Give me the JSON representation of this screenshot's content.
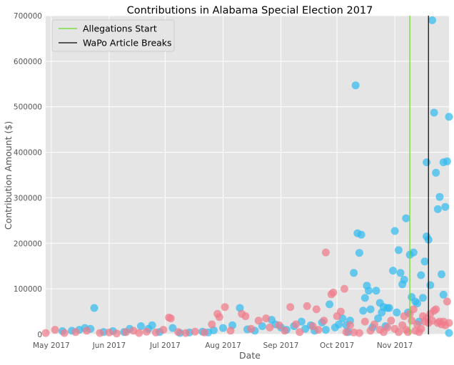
{
  "chart_data": {
    "type": "scatter",
    "title": "Contributions in Alabama Special Election 2017",
    "xlabel": "Date",
    "ylabel": "Contribution Amount ($)",
    "x_type": "date",
    "xlim": [
      "2017-04-28",
      "2017-11-30"
    ],
    "ylim": [
      0,
      700000
    ],
    "yticks": [
      0,
      100000,
      200000,
      300000,
      400000,
      500000,
      600000,
      700000
    ],
    "xticks": [
      {
        "date": "2017-05-01",
        "label": "May 2017"
      },
      {
        "date": "2017-06-01",
        "label": "Jun 2017"
      },
      {
        "date": "2017-07-01",
        "label": "Jul 2017"
      },
      {
        "date": "2017-08-01",
        "label": "Aug 2017"
      },
      {
        "date": "2017-09-01",
        "label": "Sep 2017"
      },
      {
        "date": "2017-10-01",
        "label": "Oct 2017"
      },
      {
        "date": "2017-11-01",
        "label": "Nov 2017"
      }
    ],
    "grid": true,
    "legend_position": "top-left",
    "vlines": [
      {
        "name": "Allegations Start",
        "date": "2017-11-09",
        "color": "#66dd22"
      },
      {
        "name": "WaPo Article Breaks",
        "date": "2017-11-19",
        "color": "#000000"
      }
    ],
    "series": [
      {
        "color": "#33bbee",
        "points": [
          [
            "2017-05-07",
            7000
          ],
          [
            "2017-05-12",
            8000
          ],
          [
            "2017-05-16",
            10000
          ],
          [
            "2017-05-19",
            14000
          ],
          [
            "2017-05-22",
            12000
          ],
          [
            "2017-05-24",
            58000
          ],
          [
            "2017-05-29",
            5000
          ],
          [
            "2017-06-03",
            7000
          ],
          [
            "2017-06-09",
            5000
          ],
          [
            "2017-06-12",
            12000
          ],
          [
            "2017-06-18",
            18000
          ],
          [
            "2017-06-22",
            12000
          ],
          [
            "2017-06-24",
            20000
          ],
          [
            "2017-06-28",
            5000
          ],
          [
            "2017-07-05",
            14000
          ],
          [
            "2017-07-09",
            3000
          ],
          [
            "2017-07-14",
            4000
          ],
          [
            "2017-07-21",
            6000
          ],
          [
            "2017-07-24",
            4000
          ],
          [
            "2017-07-27",
            9000
          ],
          [
            "2017-08-01",
            14000
          ],
          [
            "2017-08-06",
            20000
          ],
          [
            "2017-08-10",
            58000
          ],
          [
            "2017-08-14",
            11000
          ],
          [
            "2017-08-18",
            8000
          ],
          [
            "2017-08-22",
            18000
          ],
          [
            "2017-08-27",
            32000
          ],
          [
            "2017-08-29",
            22000
          ],
          [
            "2017-09-01",
            15000
          ],
          [
            "2017-09-04",
            10000
          ],
          [
            "2017-09-08",
            18000
          ],
          [
            "2017-09-12",
            28000
          ],
          [
            "2017-09-14",
            12000
          ],
          [
            "2017-09-17",
            20000
          ],
          [
            "2017-09-19",
            8000
          ],
          [
            "2017-09-23",
            26000
          ],
          [
            "2017-09-25",
            10000
          ],
          [
            "2017-09-27",
            66000
          ],
          [
            "2017-09-30",
            15000
          ],
          [
            "2017-10-02",
            22000
          ],
          [
            "2017-10-04",
            35000
          ],
          [
            "2017-10-06",
            20000
          ],
          [
            "2017-10-07",
            5000
          ],
          [
            "2017-10-08",
            30000
          ],
          [
            "2017-10-10",
            135000
          ],
          [
            "2017-10-11",
            547000
          ],
          [
            "2017-10-12",
            222000
          ],
          [
            "2017-10-13",
            179000
          ],
          [
            "2017-10-14",
            219000
          ],
          [
            "2017-10-15",
            52000
          ],
          [
            "2017-10-16",
            80000
          ],
          [
            "2017-10-17",
            107000
          ],
          [
            "2017-10-18",
            96000
          ],
          [
            "2017-10-19",
            55000
          ],
          [
            "2017-10-20",
            15000
          ],
          [
            "2017-10-22",
            96000
          ],
          [
            "2017-10-23",
            35000
          ],
          [
            "2017-10-24",
            69000
          ],
          [
            "2017-10-25",
            48000
          ],
          [
            "2017-10-26",
            60000
          ],
          [
            "2017-10-27",
            18000
          ],
          [
            "2017-10-28",
            58000
          ],
          [
            "2017-10-29",
            58000
          ],
          [
            "2017-10-31",
            140000
          ],
          [
            "2017-11-01",
            227000
          ],
          [
            "2017-11-02",
            48000
          ],
          [
            "2017-11-03",
            185000
          ],
          [
            "2017-11-04",
            135000
          ],
          [
            "2017-11-05",
            110000
          ],
          [
            "2017-11-06",
            120000
          ],
          [
            "2017-11-07",
            255000
          ],
          [
            "2017-11-08",
            48000
          ],
          [
            "2017-11-09",
            175000
          ],
          [
            "2017-11-10",
            82000
          ],
          [
            "2017-11-11",
            180000
          ],
          [
            "2017-11-12",
            72000
          ],
          [
            "2017-11-13",
            68000
          ],
          [
            "2017-11-14",
            28000
          ],
          [
            "2017-11-15",
            130000
          ],
          [
            "2017-11-16",
            80000
          ],
          [
            "2017-11-17",
            160000
          ],
          [
            "2017-11-18",
            215000
          ],
          [
            "2017-11-18",
            378000
          ],
          [
            "2017-11-19",
            208000
          ],
          [
            "2017-11-20",
            108000
          ],
          [
            "2017-11-21",
            690000
          ],
          [
            "2017-11-22",
            487000
          ],
          [
            "2017-11-23",
            355000
          ],
          [
            "2017-11-24",
            275000
          ],
          [
            "2017-11-25",
            302000
          ],
          [
            "2017-11-26",
            132000
          ],
          [
            "2017-11-27",
            87000
          ],
          [
            "2017-11-27",
            378000
          ],
          [
            "2017-11-28",
            280000
          ],
          [
            "2017-11-29",
            380000
          ],
          [
            "2017-11-30",
            478000
          ],
          [
            "2017-11-30",
            3000
          ]
        ]
      },
      {
        "color": "#f07c8a",
        "points": [
          [
            "2017-04-28",
            3000
          ],
          [
            "2017-05-03",
            10000
          ],
          [
            "2017-05-08",
            3000
          ],
          [
            "2017-05-14",
            5000
          ],
          [
            "2017-05-20",
            8000
          ],
          [
            "2017-05-27",
            3000
          ],
          [
            "2017-06-01",
            4000
          ],
          [
            "2017-06-05",
            2000
          ],
          [
            "2017-06-10",
            5000
          ],
          [
            "2017-06-14",
            8000
          ],
          [
            "2017-06-17",
            3000
          ],
          [
            "2017-06-21",
            6000
          ],
          [
            "2017-06-26",
            4000
          ],
          [
            "2017-06-30",
            10000
          ],
          [
            "2017-07-03",
            37000
          ],
          [
            "2017-07-04",
            35000
          ],
          [
            "2017-07-08",
            5000
          ],
          [
            "2017-07-12",
            3000
          ],
          [
            "2017-07-17",
            6000
          ],
          [
            "2017-07-22",
            4000
          ],
          [
            "2017-07-26",
            22000
          ],
          [
            "2017-07-29",
            45000
          ],
          [
            "2017-07-30",
            38000
          ],
          [
            "2017-08-02",
            60000
          ],
          [
            "2017-08-05",
            8000
          ],
          [
            "2017-08-11",
            45000
          ],
          [
            "2017-08-13",
            40000
          ],
          [
            "2017-08-16",
            12000
          ],
          [
            "2017-08-20",
            30000
          ],
          [
            "2017-08-24",
            35000
          ],
          [
            "2017-08-26",
            15000
          ],
          [
            "2017-08-31",
            20000
          ],
          [
            "2017-09-03",
            8000
          ],
          [
            "2017-09-06",
            60000
          ],
          [
            "2017-09-09",
            22000
          ],
          [
            "2017-09-11",
            5000
          ],
          [
            "2017-09-15",
            62000
          ],
          [
            "2017-09-18",
            18000
          ],
          [
            "2017-09-20",
            55000
          ],
          [
            "2017-09-21",
            10000
          ],
          [
            "2017-09-24",
            30000
          ],
          [
            "2017-09-25",
            180000
          ],
          [
            "2017-09-28",
            88000
          ],
          [
            "2017-09-29",
            92000
          ],
          [
            "2017-10-01",
            40000
          ],
          [
            "2017-10-03",
            50000
          ],
          [
            "2017-10-05",
            100000
          ],
          [
            "2017-10-06",
            5000
          ],
          [
            "2017-10-08",
            20000
          ],
          [
            "2017-10-10",
            4000
          ],
          [
            "2017-10-13",
            3000
          ],
          [
            "2017-10-16",
            28000
          ],
          [
            "2017-10-19",
            8000
          ],
          [
            "2017-10-21",
            22000
          ],
          [
            "2017-10-24",
            10000
          ],
          [
            "2017-10-26",
            5000
          ],
          [
            "2017-10-28",
            15000
          ],
          [
            "2017-10-30",
            30000
          ],
          [
            "2017-11-01",
            12000
          ],
          [
            "2017-11-03",
            5000
          ],
          [
            "2017-11-05",
            20000
          ],
          [
            "2017-11-06",
            40000
          ],
          [
            "2017-11-07",
            10000
          ],
          [
            "2017-11-08",
            5000
          ],
          [
            "2017-11-09",
            45000
          ],
          [
            "2017-11-10",
            30000
          ],
          [
            "2017-11-11",
            55000
          ],
          [
            "2017-11-12",
            8000
          ],
          [
            "2017-11-13",
            22000
          ],
          [
            "2017-11-14",
            5000
          ],
          [
            "2017-11-15",
            12000
          ],
          [
            "2017-11-16",
            40000
          ],
          [
            "2017-11-17",
            28000
          ],
          [
            "2017-11-18",
            35000
          ],
          [
            "2017-11-19",
            25000
          ],
          [
            "2017-11-20",
            45000
          ],
          [
            "2017-11-21",
            30000
          ],
          [
            "2017-11-22",
            52000
          ],
          [
            "2017-11-23",
            55000
          ],
          [
            "2017-11-24",
            25000
          ],
          [
            "2017-11-25",
            28000
          ],
          [
            "2017-11-26",
            22000
          ],
          [
            "2017-11-27",
            28000
          ],
          [
            "2017-11-28",
            20000
          ],
          [
            "2017-11-29",
            72000
          ],
          [
            "2017-11-30",
            25000
          ]
        ]
      }
    ]
  }
}
